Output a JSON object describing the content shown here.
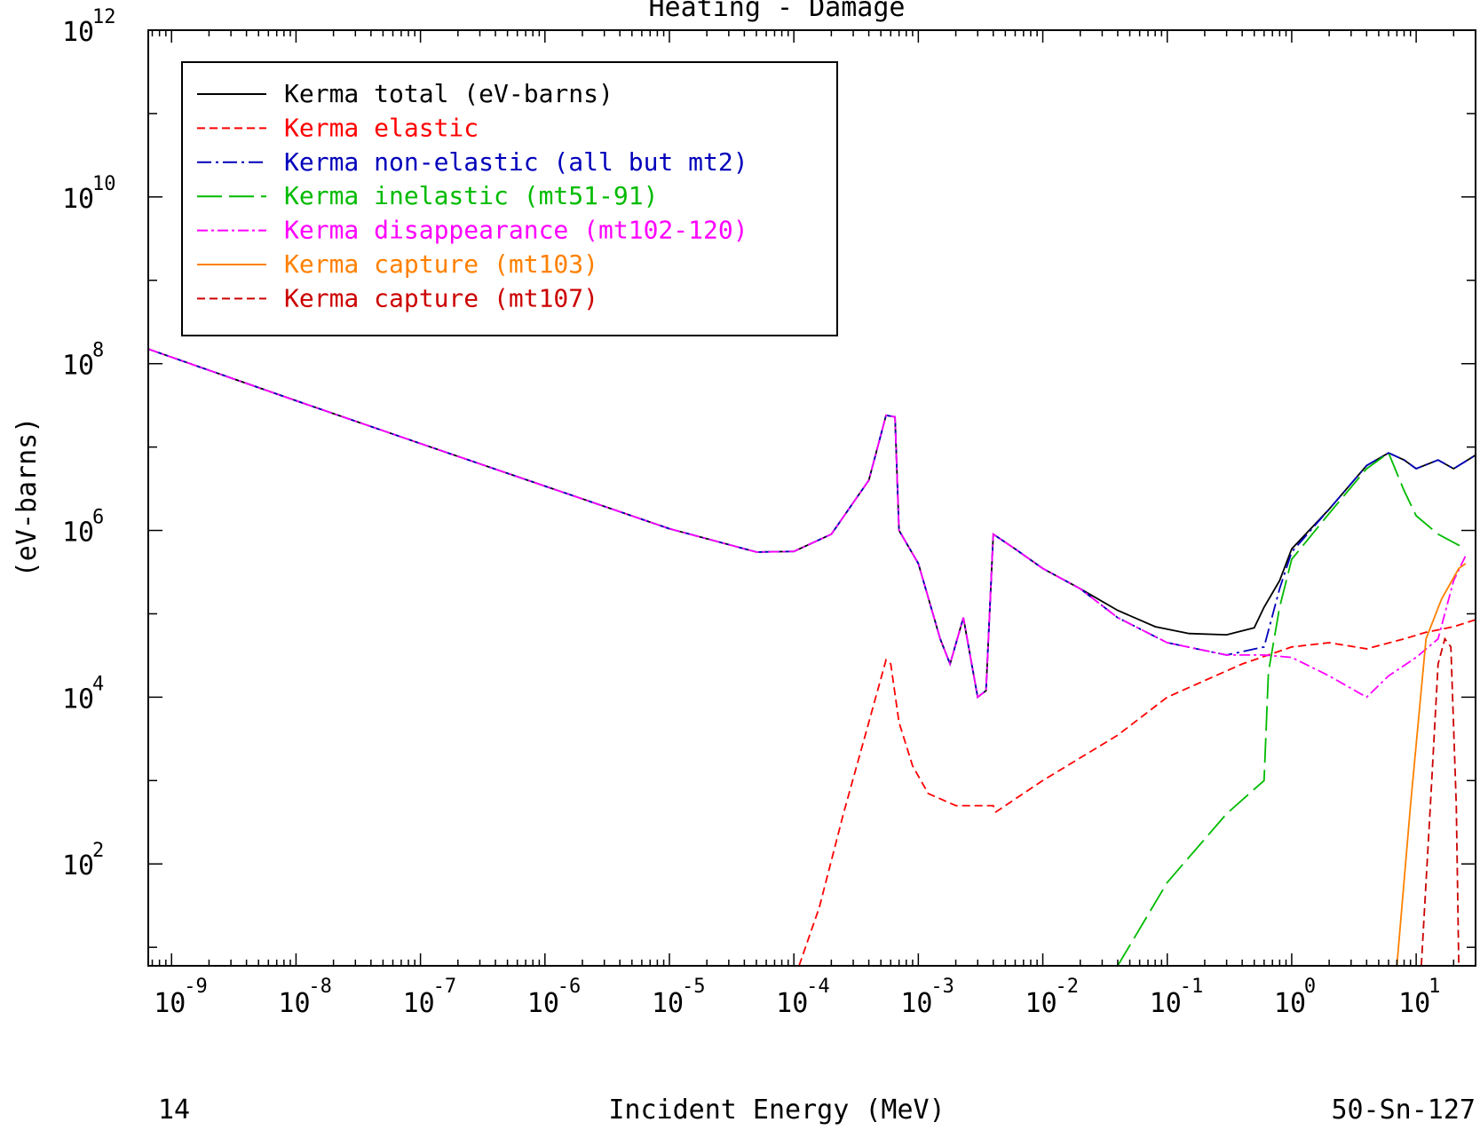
{
  "chart_data": {
    "type": "line",
    "title": "Heating - Damage",
    "xlabel": "Incident Energy (MeV)",
    "ylabel": "(eV-barns)",
    "footer_left": "14",
    "footer_right": "50-Sn-127",
    "x_scale": "log",
    "y_scale": "log",
    "xlim": [
      6.5e-10,
      30
    ],
    "ylim": [
      6,
      1000000000000.0
    ],
    "x_ticks": [
      {
        "base": "10",
        "exp": "-9",
        "value": 1e-09
      },
      {
        "base": "10",
        "exp": "-8",
        "value": 1e-08
      },
      {
        "base": "10",
        "exp": "-7",
        "value": 1e-07
      },
      {
        "base": "10",
        "exp": "-6",
        "value": 1e-06
      },
      {
        "base": "10",
        "exp": "-5",
        "value": 1e-05
      },
      {
        "base": "10",
        "exp": "-4",
        "value": 0.0001
      },
      {
        "base": "10",
        "exp": "-3",
        "value": 0.001
      },
      {
        "base": "10",
        "exp": "-2",
        "value": 0.01
      },
      {
        "base": "10",
        "exp": "-1",
        "value": 0.1
      },
      {
        "base": "10",
        "exp": "0",
        "value": 1
      },
      {
        "base": "10",
        "exp": "1",
        "value": 10
      }
    ],
    "y_ticks": [
      {
        "base": "10",
        "exp": "2",
        "value": 100
      },
      {
        "base": "10",
        "exp": "4",
        "value": 10000.0
      },
      {
        "base": "10",
        "exp": "6",
        "value": 1000000.0
      },
      {
        "base": "10",
        "exp": "8",
        "value": 100000000.0
      },
      {
        "base": "10",
        "exp": "10",
        "value": 10000000000.0
      },
      {
        "base": "10",
        "exp": "12",
        "value": 1000000000000.0
      }
    ],
    "legend_position": "top-left",
    "series": [
      {
        "name": "Kerma total  (eV-barns)",
        "color": "#000000",
        "dash": "",
        "points": [
          [
            6.5e-10,
            150000000.0
          ],
          [
            1e-08,
            36000000.0
          ],
          [
            1e-07,
            11000000.0
          ],
          [
            1e-06,
            3400000.0
          ],
          [
            1e-05,
            1050000.0
          ],
          [
            5e-05,
            550000.0
          ],
          [
            0.0001,
            560000.0
          ],
          [
            0.0002,
            900000.0
          ],
          [
            0.0004,
            4000000.0
          ],
          [
            0.00055,
            24000000.0
          ],
          [
            0.00065,
            23000000.0
          ],
          [
            0.0007,
            1000000.0
          ],
          [
            0.001,
            400000.0
          ],
          [
            0.0015,
            50000.0
          ],
          [
            0.0018,
            25000.0
          ],
          [
            0.0023,
            90000.0
          ],
          [
            0.003,
            10000.0
          ],
          [
            0.0035,
            12000.0
          ],
          [
            0.004,
            900000.0
          ],
          [
            0.006,
            600000.0
          ],
          [
            0.01,
            350000.0
          ],
          [
            0.02,
            200000.0
          ],
          [
            0.04,
            110000.0
          ],
          [
            0.08,
            70000.0
          ],
          [
            0.15,
            58000.0
          ],
          [
            0.3,
            56000.0
          ],
          [
            0.5,
            68000.0
          ],
          [
            0.6,
            120000.0
          ],
          [
            0.8,
            250000.0
          ],
          [
            1,
            600000.0
          ],
          [
            2,
            1800000.0
          ],
          [
            4,
            6000000.0
          ],
          [
            6,
            8500000.0
          ],
          [
            8,
            7000000.0
          ],
          [
            10,
            5500000.0
          ],
          [
            15,
            7000000.0
          ],
          [
            20,
            5500000.0
          ],
          [
            30,
            8000000.0
          ]
        ]
      },
      {
        "name": "Kerma elastic",
        "color": "#ff0000",
        "dash": "9,5",
        "points": [
          [
            0.00011,
            6
          ],
          [
            0.00016,
            30
          ],
          [
            0.00025,
            400
          ],
          [
            0.0004,
            5000
          ],
          [
            0.00055,
            28000.0
          ],
          [
            0.0006,
            25000.0
          ],
          [
            0.0007,
            5000
          ],
          [
            0.0009,
            1500
          ],
          [
            0.0012,
            700
          ],
          [
            0.002,
            500
          ],
          [
            0.004,
            500
          ],
          [
            0.0042,
            420
          ],
          [
            0.01,
            1000
          ],
          [
            0.04,
            3500
          ],
          [
            0.1,
            10000.0
          ],
          [
            0.4,
            25000.0
          ],
          [
            1,
            40000.0
          ],
          [
            2,
            45000.0
          ],
          [
            4,
            38000.0
          ],
          [
            8,
            50000.0
          ],
          [
            12,
            60000.0
          ],
          [
            20,
            70000.0
          ],
          [
            30,
            85000.0
          ]
        ]
      },
      {
        "name": "Kerma non-elastic (all but mt2)",
        "color": "#0000bb",
        "dash": "16,5,3,5",
        "points": [
          [
            6.5e-10,
            150000000.0
          ],
          [
            1e-08,
            36000000.0
          ],
          [
            1e-07,
            11000000.0
          ],
          [
            1e-06,
            3400000.0
          ],
          [
            1e-05,
            1050000.0
          ],
          [
            5e-05,
            550000.0
          ],
          [
            0.0001,
            560000.0
          ],
          [
            0.0002,
            900000.0
          ],
          [
            0.0004,
            4000000.0
          ],
          [
            0.00055,
            24000000.0
          ],
          [
            0.00065,
            23000000.0
          ],
          [
            0.0007,
            1000000.0
          ],
          [
            0.001,
            400000.0
          ],
          [
            0.0015,
            50000.0
          ],
          [
            0.0018,
            25000.0
          ],
          [
            0.0023,
            90000.0
          ],
          [
            0.003,
            10000.0
          ],
          [
            0.0035,
            12000.0
          ],
          [
            0.004,
            900000.0
          ],
          [
            0.006,
            600000.0
          ],
          [
            0.01,
            350000.0
          ],
          [
            0.02,
            200000.0
          ],
          [
            0.04,
            90000.0
          ],
          [
            0.1,
            45000.0
          ],
          [
            0.3,
            32000.0
          ],
          [
            0.6,
            40000.0
          ],
          [
            0.8,
            200000.0
          ],
          [
            1,
            550000.0
          ],
          [
            2,
            1800000.0
          ],
          [
            4,
            6000000.0
          ],
          [
            6,
            8500000.0
          ],
          [
            8,
            7000000.0
          ],
          [
            10,
            5500000.0
          ],
          [
            15,
            7000000.0
          ],
          [
            20,
            5500000.0
          ],
          [
            30,
            8000000.0
          ]
        ]
      },
      {
        "name": "Kerma inelastic (mt51-91)",
        "color": "#00bb00",
        "dash": "28,8",
        "points": [
          [
            0.04,
            6
          ],
          [
            0.1,
            60
          ],
          [
            0.3,
            400
          ],
          [
            0.6,
            1000
          ],
          [
            0.65,
            20000.0
          ],
          [
            0.8,
            120000.0
          ],
          [
            1,
            450000.0
          ],
          [
            2,
            1600000.0
          ],
          [
            4,
            5500000.0
          ],
          [
            6,
            8500000.0
          ],
          [
            8,
            3000000.0
          ],
          [
            10,
            1500000.0
          ],
          [
            15,
            900000.0
          ],
          [
            25,
            600000.0
          ]
        ]
      },
      {
        "name": "Kerma disappearance (mt102-120)",
        "color": "#ff00ff",
        "dash": "12,4,3,4",
        "points": [
          [
            6.5e-10,
            150000000.0
          ],
          [
            1e-08,
            36000000.0
          ],
          [
            1e-07,
            11000000.0
          ],
          [
            1e-06,
            3400000.0
          ],
          [
            1e-05,
            1050000.0
          ],
          [
            5e-05,
            550000.0
          ],
          [
            0.0001,
            560000.0
          ],
          [
            0.0002,
            900000.0
          ],
          [
            0.0004,
            4000000.0
          ],
          [
            0.00055,
            24000000.0
          ],
          [
            0.00065,
            23000000.0
          ],
          [
            0.0007,
            1000000.0
          ],
          [
            0.001,
            400000.0
          ],
          [
            0.0015,
            50000.0
          ],
          [
            0.0018,
            25000.0
          ],
          [
            0.0023,
            90000.0
          ],
          [
            0.003,
            10000.0
          ],
          [
            0.0035,
            12000.0
          ],
          [
            0.004,
            900000.0
          ],
          [
            0.006,
            600000.0
          ],
          [
            0.01,
            350000.0
          ],
          [
            0.02,
            200000.0
          ],
          [
            0.04,
            90000.0
          ],
          [
            0.1,
            45000.0
          ],
          [
            0.3,
            32000.0
          ],
          [
            0.6,
            32000.0
          ],
          [
            1,
            30000.0
          ],
          [
            2,
            18000.0
          ],
          [
            4,
            10000.0
          ],
          [
            6,
            18000.0
          ],
          [
            10,
            30000.0
          ],
          [
            15,
            50000.0
          ],
          [
            20,
            250000.0
          ],
          [
            25,
            500000.0
          ]
        ]
      },
      {
        "name": "Kerma capture (mt103)",
        "color": "#ff8000",
        "dash": "",
        "points": [
          [
            7.0,
            6
          ],
          [
            9,
            500
          ],
          [
            12,
            50000.0
          ],
          [
            16,
            150000.0
          ],
          [
            22,
            350000.0
          ],
          [
            25,
            400000.0
          ]
        ]
      },
      {
        "name": "Kerma capture (mt107)",
        "color": "#cc0000",
        "dash": "9,5",
        "points": [
          [
            11,
            6
          ],
          [
            13,
            500
          ],
          [
            15,
            25000.0
          ],
          [
            17,
            50000.0
          ],
          [
            19,
            40000.0
          ],
          [
            21,
            500
          ],
          [
            22,
            6
          ]
        ]
      }
    ]
  }
}
